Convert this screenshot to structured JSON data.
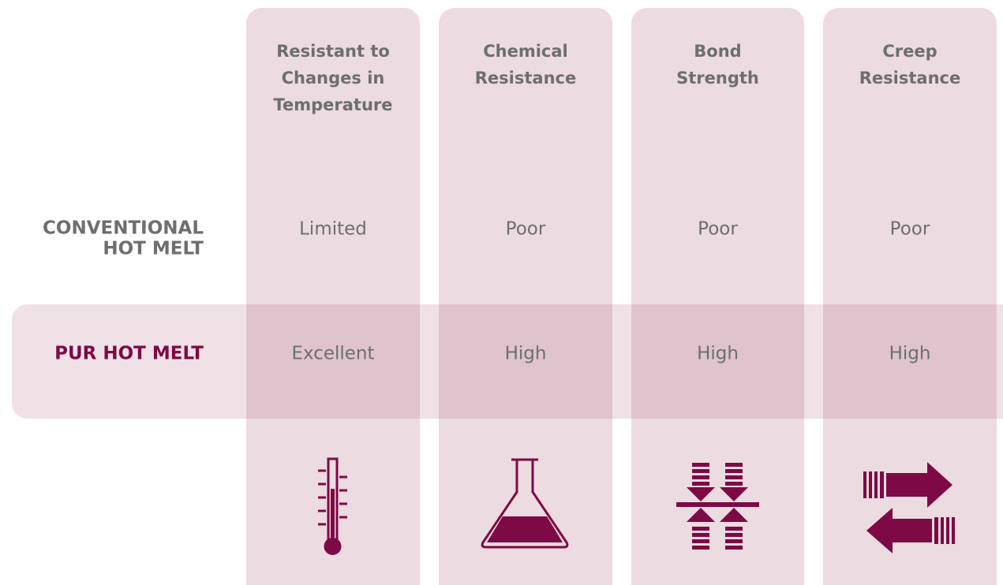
{
  "table": {
    "columns": [
      {
        "header": [
          "Resistant to",
          "Changes in",
          "Temperature"
        ]
      },
      {
        "header": [
          "Chemical",
          "Resistance"
        ]
      },
      {
        "header": [
          "Bond",
          "Strength"
        ]
      },
      {
        "header": [
          "Creep",
          "Resistance"
        ]
      }
    ],
    "rows": [
      {
        "label": [
          "CONVENTIONAL",
          "HOT MELT"
        ],
        "cells": [
          "Limited",
          "Poor",
          "Poor",
          "Poor"
        ]
      },
      {
        "label": [
          "PUR HOT MELT"
        ],
        "cells": [
          "Excellent",
          "High",
          "High",
          "High"
        ]
      }
    ]
  }
}
